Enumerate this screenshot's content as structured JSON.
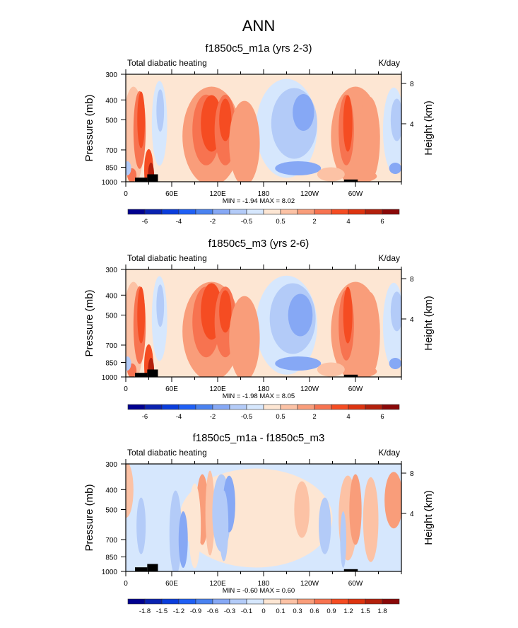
{
  "figure": {
    "main_title": "ANN"
  },
  "chart_data": [
    {
      "type": "heatmap",
      "title": "f1850c5_m1a (yrs 2-3)",
      "left_string": "Total diabatic heating",
      "right_string": "K/day",
      "xlabel": "",
      "ylabel": "Pressure (mb)",
      "ylabel_right": "Height (km)",
      "x_ticks": [
        0,
        60,
        120,
        180,
        240,
        300
      ],
      "x_tick_labels": [
        "0",
        "60E",
        "120E",
        "180",
        "120W",
        "60W"
      ],
      "xlim": [
        0,
        360
      ],
      "y_ticks": [
        300,
        400,
        500,
        700,
        850,
        1000
      ],
      "y_tick_labels": [
        "300",
        "400",
        "500",
        "700",
        "850",
        "1000"
      ],
      "ylim": [
        1000,
        300
      ],
      "y_right_ticks": [
        8,
        4
      ],
      "y_right_tick_labels": [
        "8",
        "4"
      ],
      "stats": "MIN =  -1.94  MAX =   8.02",
      "min": -1.94,
      "max": 8.02,
      "colorbar": {
        "levels": [
          -7,
          -6,
          -5,
          -4,
          -3,
          -2,
          -1,
          -0.5,
          0,
          0.5,
          1,
          2,
          3,
          4,
          5,
          6,
          7
        ],
        "labels": [
          "-6",
          "-4",
          "-2",
          "-0.5",
          "0.5",
          "2",
          "4",
          "6"
        ],
        "label_positions": [
          1,
          3,
          5,
          7,
          9,
          11,
          13,
          15
        ],
        "colors": [
          "#00008f",
          "#0a22b0",
          "#0a3ddc",
          "#1f5ff5",
          "#4a82f0",
          "#86a8f5",
          "#b3cbf8",
          "#d6e7fd",
          "#fde6d3",
          "#fcc2a5",
          "#f99d7a",
          "#f77350",
          "#f54c22",
          "#dd3410",
          "#b3200c",
          "#8a0808"
        ]
      },
      "field": "m1a"
    },
    {
      "type": "heatmap",
      "title": "f1850c5_m3 (yrs 2-6)",
      "left_string": "Total diabatic heating",
      "right_string": "K/day",
      "xlabel": "",
      "ylabel": "Pressure (mb)",
      "ylabel_right": "Height (km)",
      "x_ticks": [
        0,
        60,
        120,
        180,
        240,
        300
      ],
      "x_tick_labels": [
        "0",
        "60E",
        "120E",
        "180",
        "120W",
        "60W"
      ],
      "xlim": [
        0,
        360
      ],
      "y_ticks": [
        300,
        400,
        500,
        700,
        850,
        1000
      ],
      "y_tick_labels": [
        "300",
        "400",
        "500",
        "700",
        "850",
        "1000"
      ],
      "ylim": [
        1000,
        300
      ],
      "y_right_ticks": [
        8,
        4
      ],
      "y_right_tick_labels": [
        "8",
        "4"
      ],
      "stats": "MIN =  -1.98  MAX =   8.05",
      "min": -1.98,
      "max": 8.05,
      "colorbar": {
        "levels": [
          -7,
          -6,
          -5,
          -4,
          -3,
          -2,
          -1,
          -0.5,
          0,
          0.5,
          1,
          2,
          3,
          4,
          5,
          6,
          7
        ],
        "labels": [
          "-6",
          "-4",
          "-2",
          "-0.5",
          "0.5",
          "2",
          "4",
          "6"
        ],
        "label_positions": [
          1,
          3,
          5,
          7,
          9,
          11,
          13,
          15
        ],
        "colors": [
          "#00008f",
          "#0a22b0",
          "#0a3ddc",
          "#1f5ff5",
          "#4a82f0",
          "#86a8f5",
          "#b3cbf8",
          "#d6e7fd",
          "#fde6d3",
          "#fcc2a5",
          "#f99d7a",
          "#f77350",
          "#f54c22",
          "#dd3410",
          "#b3200c",
          "#8a0808"
        ]
      },
      "field": "m3"
    },
    {
      "type": "heatmap",
      "title": "f1850c5_m1a - f1850c5_m3",
      "left_string": "Total diabatic heating",
      "right_string": "K/day",
      "xlabel": "",
      "ylabel": "Pressure (mb)",
      "ylabel_right": "Height (km)",
      "x_ticks": [
        0,
        60,
        120,
        180,
        240,
        300
      ],
      "x_tick_labels": [
        "0",
        "60E",
        "120E",
        "180",
        "120W",
        "60W"
      ],
      "xlim": [
        0,
        360
      ],
      "y_ticks": [
        300,
        400,
        500,
        700,
        850,
        1000
      ],
      "y_tick_labels": [
        "300",
        "400",
        "500",
        "700",
        "850",
        "1000"
      ],
      "ylim": [
        1000,
        300
      ],
      "y_right_ticks": [
        8,
        4
      ],
      "y_right_tick_labels": [
        "8",
        "4"
      ],
      "stats": "MIN =  -0.60  MAX =   0.60",
      "min": -0.6,
      "max": 0.6,
      "colorbar": {
        "levels": [
          -2.1,
          -1.8,
          -1.5,
          -1.2,
          -0.9,
          -0.6,
          -0.3,
          -0.1,
          0,
          0.1,
          0.3,
          0.6,
          0.9,
          1.2,
          1.5,
          1.8,
          2.1
        ],
        "labels": [
          "-1.8",
          "-1.5",
          "-1.2",
          "-0.9",
          "-0.6",
          "-0.3",
          "-0.1",
          "0",
          "0.1",
          "0.3",
          "0.6",
          "0.9",
          "1.2",
          "1.5",
          "1.8"
        ],
        "label_positions": [
          1,
          2,
          3,
          4,
          5,
          6,
          7,
          8,
          9,
          10,
          11,
          12,
          13,
          14,
          15
        ],
        "colors": [
          "#00008f",
          "#0a22b0",
          "#0a3ddc",
          "#1f5ff5",
          "#4a82f0",
          "#86a8f5",
          "#b3cbf8",
          "#d6e7fd",
          "#fde6d3",
          "#fcc2a5",
          "#f99d7a",
          "#f77350",
          "#f54c22",
          "#dd3410",
          "#b3200c",
          "#8a0808"
        ]
      },
      "field": "diff"
    }
  ]
}
